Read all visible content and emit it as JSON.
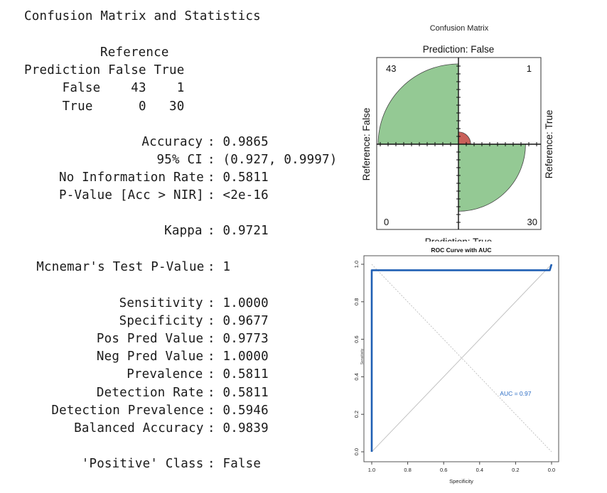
{
  "console": {
    "title": "Confusion Matrix and Statistics",
    "reference_header": "Reference",
    "table_header": "Prediction False True",
    "row_false": "     False    43    1",
    "row_true": "     True      0   30",
    "stats": [
      {
        "label": "Accuracy",
        "value": "0.9865"
      },
      {
        "label": "95% CI",
        "value": "(0.927, 0.9997)"
      },
      {
        "label": "No Information Rate",
        "value": "0.5811"
      },
      {
        "label": "P-Value [Acc > NIR]",
        "value": "<2e-16"
      },
      {
        "label": "Kappa",
        "value": "0.9721"
      },
      {
        "label": "Mcnemar's Test P-Value",
        "value": "1"
      },
      {
        "label": "Sensitivity",
        "value": "1.0000"
      },
      {
        "label": "Specificity",
        "value": "0.9677"
      },
      {
        "label": "Pos Pred Value",
        "value": "0.9773"
      },
      {
        "label": "Neg Pred Value",
        "value": "1.0000"
      },
      {
        "label": "Prevalence",
        "value": "0.5811"
      },
      {
        "label": "Detection Rate",
        "value": "0.5811"
      },
      {
        "label": "Detection Prevalence",
        "value": "0.5946"
      },
      {
        "label": "Balanced Accuracy",
        "value": "0.9839"
      },
      {
        "label": "'Positive' Class",
        "value": "False"
      }
    ]
  },
  "chart_data": [
    {
      "type": "fourfold",
      "title": "Confusion Matrix",
      "top_label": "Prediction: False",
      "bottom_label": "Prediction: True",
      "left_label": "Reference: False",
      "right_label": "Reference: True",
      "cells": [
        {
          "position": "top-left",
          "value": 43,
          "color": "#94c994"
        },
        {
          "position": "top-right",
          "value": 1,
          "color": "#c9605a"
        },
        {
          "position": "bottom-left",
          "value": 0,
          "color": "#c9605a"
        },
        {
          "position": "bottom-right",
          "value": 30,
          "color": "#94c994"
        }
      ]
    },
    {
      "type": "line",
      "title": "ROC Curve with AUC",
      "xlabel": "Specificity",
      "ylabel": "Sensitivity",
      "x_reversed": true,
      "xlim": [
        1.0,
        0.0
      ],
      "ylim": [
        0.0,
        1.0
      ],
      "x_ticks": [
        "1.0",
        "0.8",
        "0.6",
        "0.4",
        "0.2",
        "0.0"
      ],
      "y_ticks": [
        "0.0",
        "0.2",
        "0.4",
        "0.6",
        "0.8",
        "1.0"
      ],
      "annotation": "AUC = 0.97",
      "series": [
        {
          "color": "#1f5fb4",
          "points": [
            [
              1.0,
              0.0
            ],
            [
              1.0,
              0.968
            ],
            [
              0.01,
              0.968
            ],
            [
              0.0,
              1.0
            ]
          ]
        }
      ]
    }
  ]
}
